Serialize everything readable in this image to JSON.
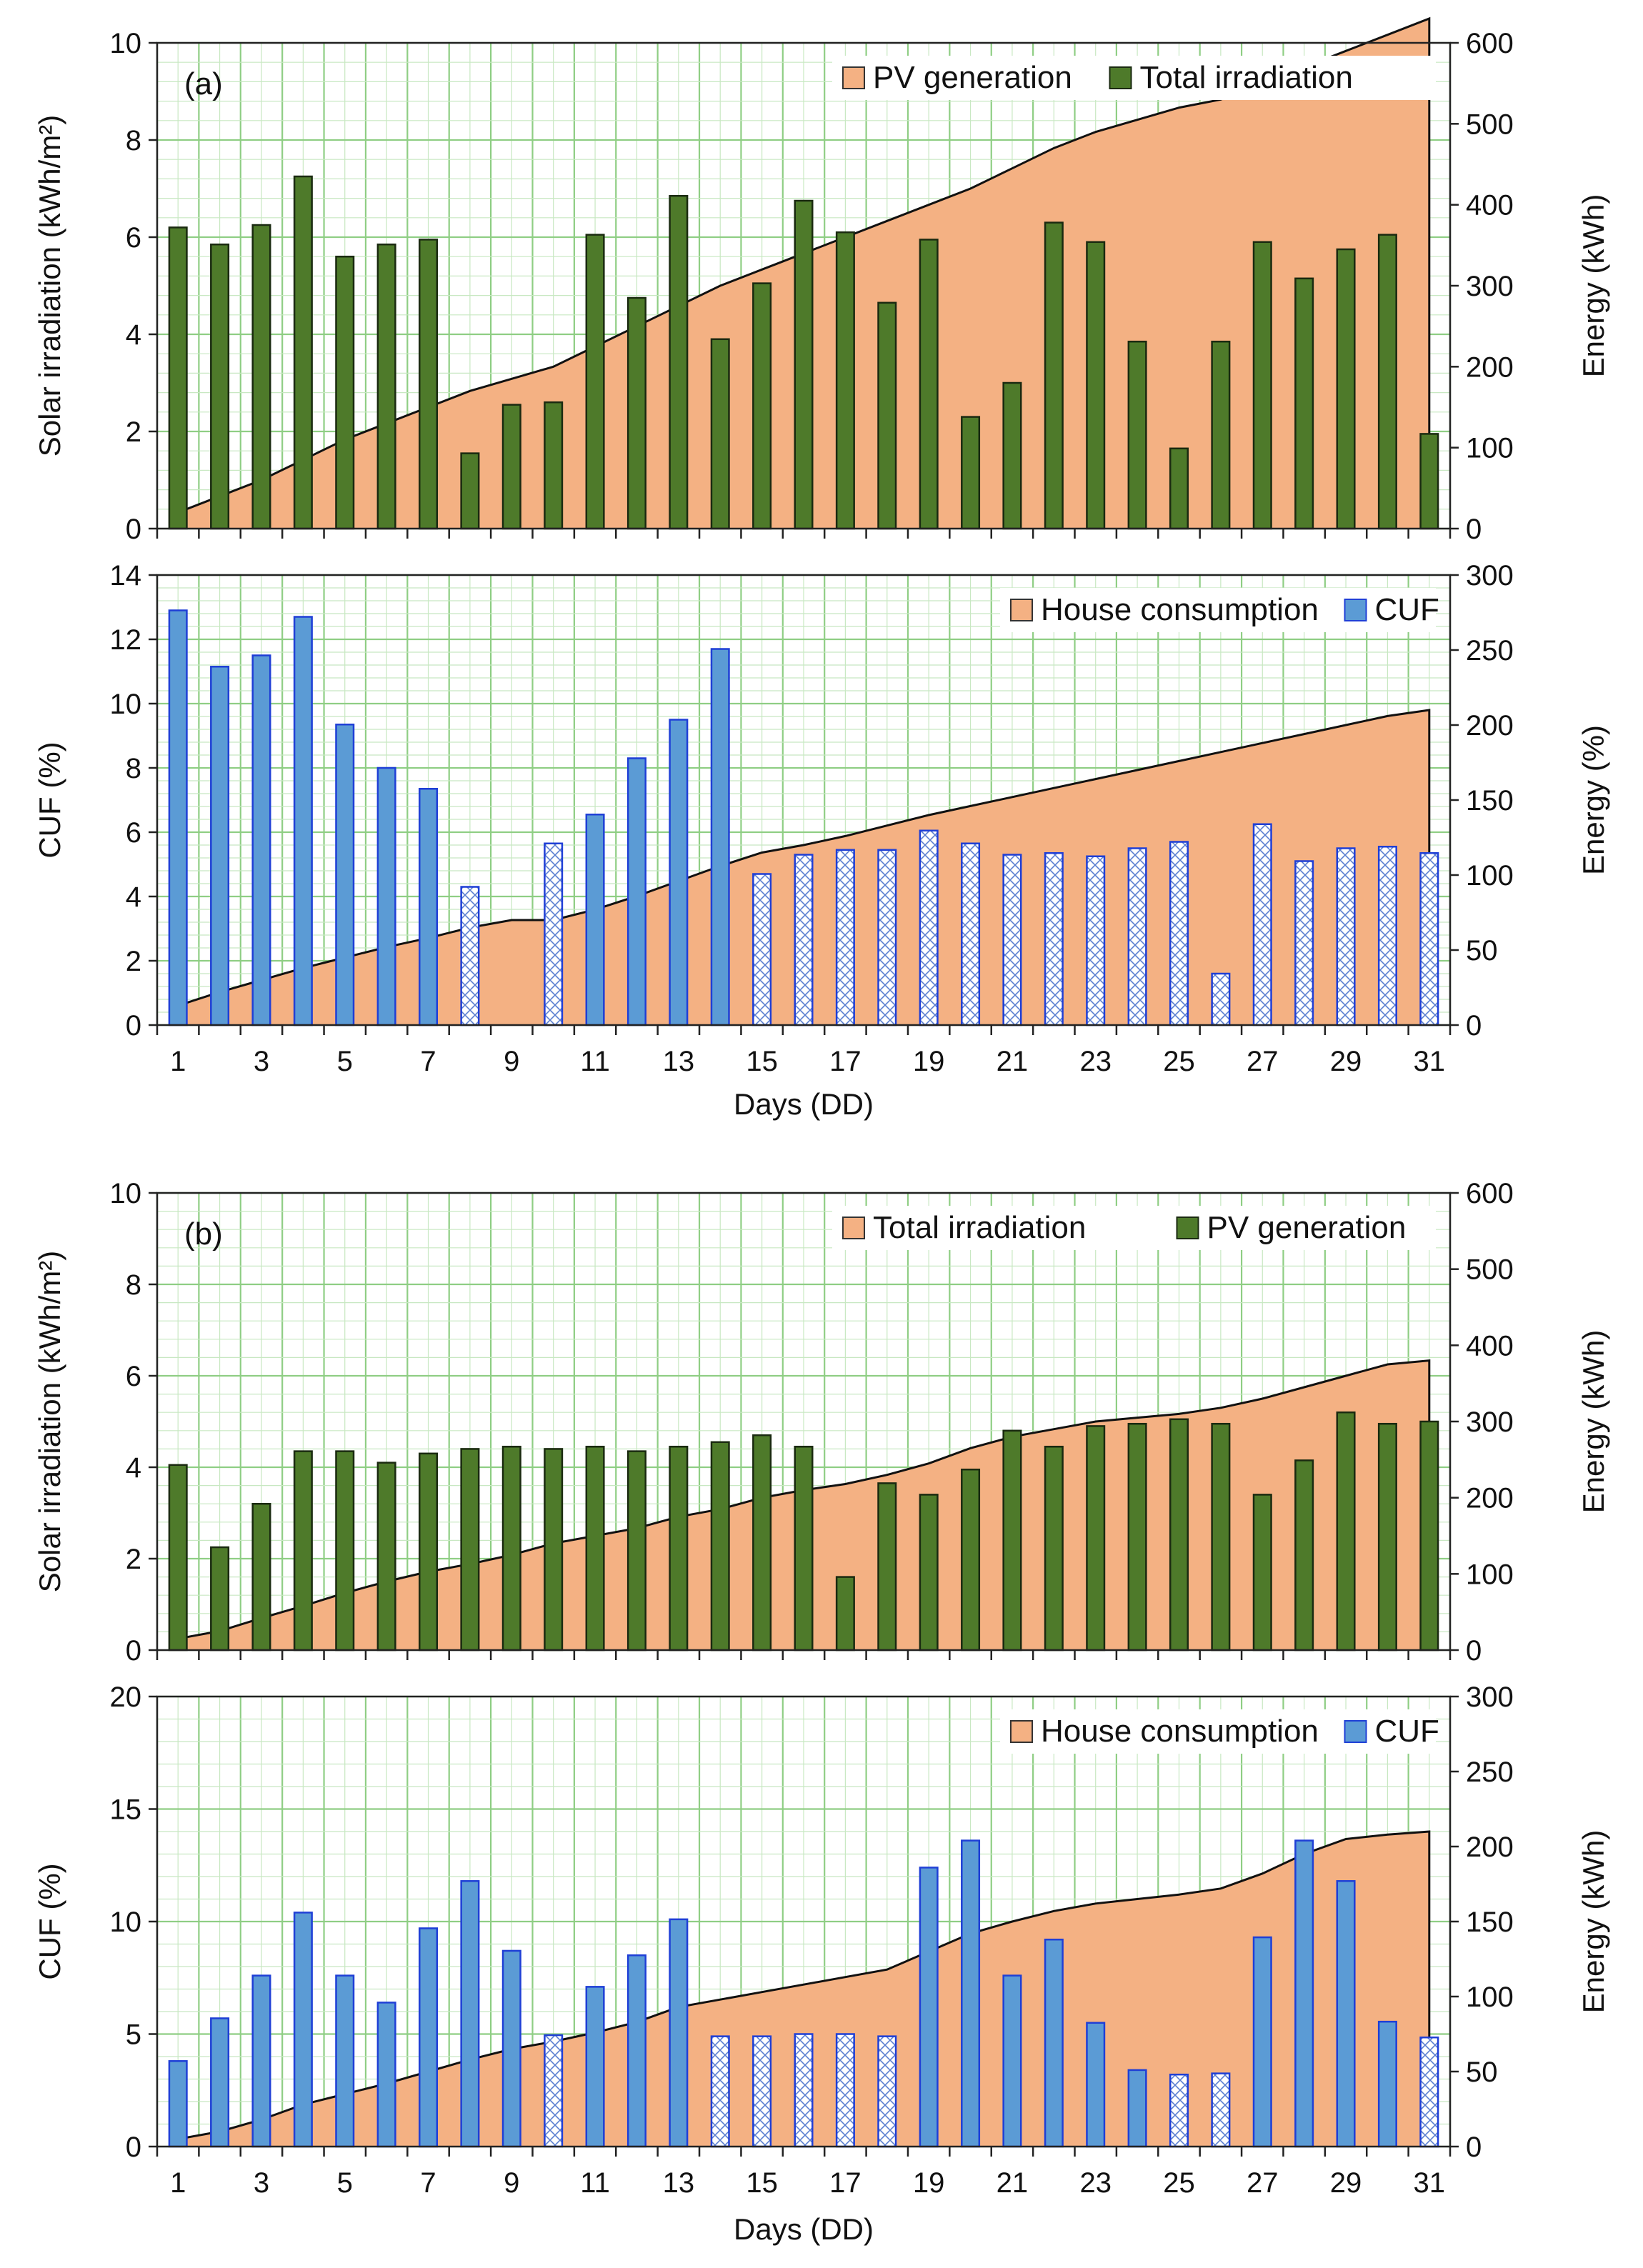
{
  "chart_data": [
    {
      "panel": "(a)",
      "type": "bar",
      "x": [
        1,
        2,
        3,
        4,
        5,
        6,
        7,
        8,
        9,
        10,
        11,
        12,
        13,
        14,
        15,
        16,
        17,
        18,
        19,
        20,
        21,
        22,
        23,
        24,
        25,
        26,
        27,
        28,
        29,
        30,
        31
      ],
      "xticks": [
        1,
        3,
        5,
        7,
        9,
        11,
        13,
        15,
        17,
        19,
        21,
        23,
        25,
        27,
        29,
        31
      ],
      "ylabel": "Solar irradiation (kWh/m²)",
      "ylim": [
        0,
        10
      ],
      "yticks": [
        0,
        2,
        4,
        6,
        8,
        10
      ],
      "y2label": "Energy (kWh)",
      "y2lim": [
        0,
        600
      ],
      "y2ticks": [
        0,
        100,
        200,
        300,
        400,
        500,
        600
      ],
      "grid": true,
      "legend_position": "top-right",
      "series": [
        {
          "name": "PV generation",
          "type": "area",
          "axis": "right",
          "color": "#f4b183",
          "values": [
            20,
            40,
            60,
            85,
            110,
            130,
            150,
            170,
            185,
            200,
            225,
            250,
            275,
            300,
            320,
            340,
            360,
            380,
            400,
            420,
            445,
            470,
            490,
            505,
            520,
            530,
            550,
            570,
            590,
            610,
            630
          ]
        },
        {
          "name": "Total irradiation",
          "type": "bar",
          "axis": "left",
          "color": "#4e7a2a",
          "values": [
            6.2,
            5.85,
            6.25,
            7.25,
            5.6,
            5.85,
            5.95,
            1.55,
            2.55,
            2.6,
            6.05,
            4.75,
            6.85,
            3.9,
            5.05,
            6.75,
            6.1,
            4.65,
            5.95,
            2.3,
            3.0,
            6.3,
            5.9,
            3.85,
            1.65,
            3.85,
            5.9,
            5.15,
            5.75,
            6.05,
            1.95
          ]
        }
      ]
    },
    {
      "type": "bar",
      "x": [
        1,
        2,
        3,
        4,
        5,
        6,
        7,
        8,
        9,
        10,
        11,
        12,
        13,
        14,
        15,
        16,
        17,
        18,
        19,
        20,
        21,
        22,
        23,
        24,
        25,
        26,
        27,
        28,
        29,
        30,
        31
      ],
      "xticks": [
        1,
        3,
        5,
        7,
        9,
        11,
        13,
        15,
        17,
        19,
        21,
        23,
        25,
        27,
        29,
        31
      ],
      "xlabel": "Days (DD)",
      "ylabel": "CUF (%)",
      "ylim": [
        0,
        14
      ],
      "yticks": [
        0,
        2,
        4,
        6,
        8,
        10,
        12,
        14
      ],
      "y2label": "Energy (%)",
      "y2lim": [
        0,
        300
      ],
      "y2ticks": [
        0,
        50,
        100,
        150,
        200,
        250,
        300
      ],
      "grid": true,
      "legend_position": "top-right",
      "series": [
        {
          "name": "House consumption",
          "type": "area",
          "axis": "right",
          "color": "#f4b183",
          "values": [
            13,
            22,
            30,
            38,
            45,
            52,
            58,
            65,
            70,
            70,
            77,
            86,
            96,
            106,
            115,
            120,
            126,
            133,
            140,
            146,
            152,
            158,
            164,
            170,
            176,
            182,
            188,
            194,
            200,
            206,
            210
          ]
        },
        {
          "name": "CUF",
          "type": "bar",
          "axis": "left",
          "color": "#5b9bd5",
          "values": [
            12.9,
            11.15,
            11.5,
            12.7,
            9.35,
            8.0,
            7.35,
            4.3,
            0,
            5.65,
            6.55,
            8.3,
            9.5,
            11.7,
            4.7,
            5.3,
            5.45,
            5.45,
            6.05,
            5.65,
            5.3,
            5.35,
            5.25,
            5.5,
            5.7,
            1.6,
            6.25,
            5.1,
            5.5,
            5.55,
            5.35
          ],
          "hatched": [
            false,
            false,
            false,
            false,
            false,
            false,
            false,
            true,
            false,
            true,
            false,
            false,
            false,
            false,
            true,
            true,
            true,
            true,
            true,
            true,
            true,
            true,
            true,
            true,
            true,
            true,
            true,
            true,
            true,
            true,
            true
          ]
        }
      ]
    },
    {
      "panel": "(b)",
      "type": "bar",
      "x": [
        1,
        2,
        3,
        4,
        5,
        6,
        7,
        8,
        9,
        10,
        11,
        12,
        13,
        14,
        15,
        16,
        17,
        18,
        19,
        20,
        21,
        22,
        23,
        24,
        25,
        26,
        27,
        28,
        29,
        30,
        31
      ],
      "xticks": [
        1,
        3,
        5,
        7,
        9,
        11,
        13,
        15,
        17,
        19,
        21,
        23,
        25,
        27,
        29,
        31
      ],
      "ylabel": "Solar irradiation (kWh/m²)",
      "ylim": [
        0,
        10
      ],
      "yticks": [
        0,
        2,
        4,
        6,
        8,
        10
      ],
      "y2label": "Energy (kWh)",
      "y2lim": [
        0,
        600
      ],
      "y2ticks": [
        0,
        100,
        200,
        300,
        400,
        500,
        600
      ],
      "grid": true,
      "legend_position": "top-right",
      "series": [
        {
          "name": "Total irradiation",
          "type": "area",
          "axis": "right",
          "color": "#f4b183",
          "values": [
            15,
            25,
            42,
            58,
            75,
            90,
            103,
            113,
            125,
            140,
            150,
            160,
            175,
            185,
            200,
            210,
            218,
            230,
            245,
            265,
            280,
            290,
            300,
            305,
            310,
            318,
            330,
            345,
            360,
            375,
            380
          ]
        },
        {
          "name": "PV generation",
          "type": "bar",
          "axis": "left",
          "color": "#4e7a2a",
          "values": [
            4.05,
            2.25,
            3.2,
            4.35,
            4.35,
            4.1,
            4.3,
            4.4,
            4.45,
            4.4,
            4.45,
            4.35,
            4.45,
            4.55,
            4.7,
            4.45,
            1.6,
            3.65,
            3.4,
            3.95,
            4.8,
            4.45,
            4.9,
            4.95,
            5.05,
            4.95,
            3.4,
            4.15,
            5.2,
            4.95,
            5.0
          ]
        }
      ]
    },
    {
      "type": "bar",
      "x": [
        1,
        2,
        3,
        4,
        5,
        6,
        7,
        8,
        9,
        10,
        11,
        12,
        13,
        14,
        15,
        16,
        17,
        18,
        19,
        20,
        21,
        22,
        23,
        24,
        25,
        26,
        27,
        28,
        29,
        30,
        31
      ],
      "xticks": [
        1,
        3,
        5,
        7,
        9,
        11,
        13,
        15,
        17,
        19,
        21,
        23,
        25,
        27,
        29,
        31
      ],
      "xlabel": "Days (DD)",
      "ylabel": "CUF (%)",
      "ylim": [
        0,
        20
      ],
      "yticks": [
        0,
        5,
        10,
        15,
        20
      ],
      "y2label": "Energy (kWh)",
      "y2lim": [
        0,
        300
      ],
      "y2ticks": [
        0,
        50,
        100,
        150,
        200,
        250,
        300
      ],
      "grid": true,
      "legend_position": "top-right",
      "series": [
        {
          "name": "House consumption",
          "type": "area",
          "axis": "right",
          "color": "#f4b183",
          "values": [
            5,
            10,
            18,
            28,
            35,
            42,
            50,
            58,
            65,
            70,
            76,
            83,
            93,
            98,
            103,
            108,
            113,
            118,
            130,
            142,
            150,
            157,
            162,
            165,
            168,
            172,
            182,
            195,
            205,
            208,
            210
          ]
        },
        {
          "name": "CUF",
          "type": "bar",
          "axis": "left",
          "color": "#5b9bd5",
          "values": [
            3.8,
            5.7,
            7.6,
            10.4,
            7.6,
            6.4,
            9.7,
            11.8,
            8.7,
            4.95,
            7.1,
            8.5,
            10.1,
            4.9,
            4.9,
            5.0,
            5.0,
            4.9,
            12.4,
            13.6,
            7.6,
            9.2,
            5.5,
            3.4,
            3.2,
            3.25,
            9.3,
            13.6,
            11.8,
            5.55,
            4.85
          ],
          "hatched": [
            false,
            false,
            false,
            false,
            false,
            false,
            false,
            false,
            false,
            true,
            false,
            false,
            false,
            true,
            true,
            true,
            true,
            true,
            false,
            false,
            false,
            false,
            false,
            false,
            true,
            true,
            false,
            false,
            false,
            false,
            true
          ]
        }
      ]
    }
  ]
}
